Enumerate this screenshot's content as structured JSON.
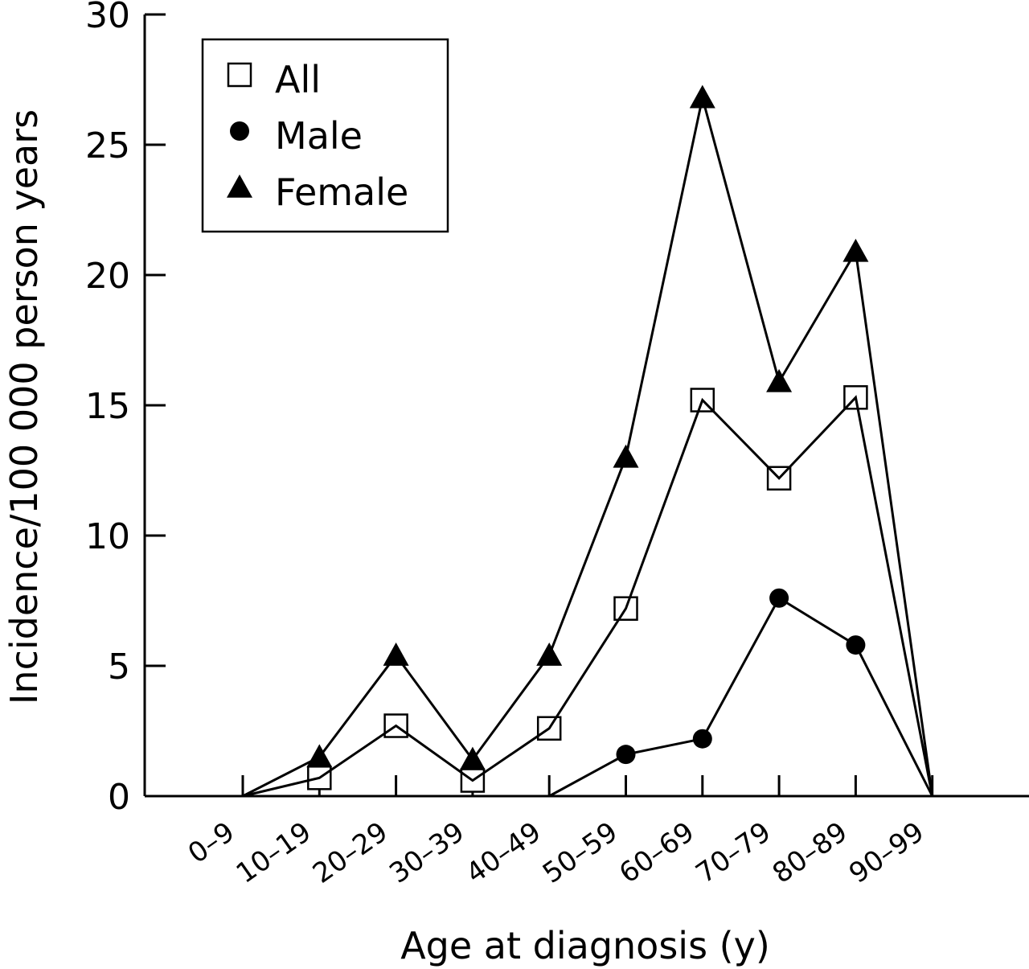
{
  "chart_data": {
    "type": "line",
    "title": "",
    "xlabel": "Age at diagnosis (y)",
    "ylabel": "Incidence/100 000 person years",
    "categories": [
      "0–9",
      "10–19",
      "20–29",
      "30–39",
      "40–49",
      "50–59",
      "60–69",
      "70–79",
      "80–89",
      "90–99"
    ],
    "ylim": [
      0,
      30
    ],
    "yticks": [
      "0",
      "5",
      "10",
      "15",
      "20",
      "25",
      "30"
    ],
    "legend_position": "top-left",
    "grid": false,
    "series": [
      {
        "name": "All",
        "marker": "open-square",
        "values": [
          0,
          0.7,
          2.7,
          0.6,
          2.6,
          7.2,
          15.2,
          12.2,
          15.3,
          0
        ]
      },
      {
        "name": "Male",
        "marker": "filled-circle",
        "values": [
          null,
          null,
          null,
          null,
          0,
          1.6,
          2.2,
          7.6,
          5.8,
          0
        ],
        "point_markers": [
          false,
          false,
          false,
          false,
          false,
          true,
          true,
          true,
          true,
          false
        ]
      },
      {
        "name": "Female",
        "marker": "filled-triangle",
        "values": [
          0,
          1.5,
          5.4,
          1.4,
          5.4,
          13.0,
          26.8,
          15.9,
          20.9,
          0
        ]
      }
    ]
  }
}
